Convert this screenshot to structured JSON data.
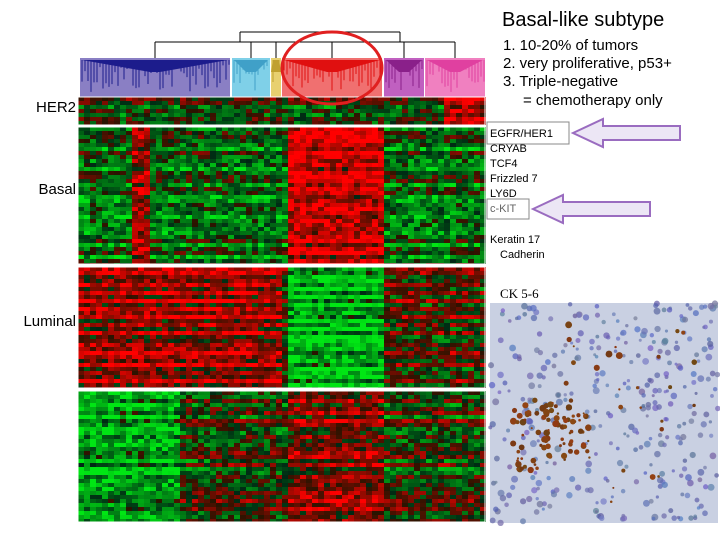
{
  "title": "Basal-like subtype",
  "points": [
    "1. 10-20% of tumors",
    "2. very proliferative, p53+",
    "3. Triple-negative",
    "= chemotherapy only"
  ],
  "row_labels": [
    "HER2",
    "Basal",
    "Luminal"
  ],
  "genes": [
    "EGFR/HER1",
    "CRYAB",
    "TCF4",
    "Frizzled 7",
    "LY6D",
    "c-KIT",
    "Keratin 17",
    "Cadherin"
  ],
  "image_label": "CK 5-6"
}
